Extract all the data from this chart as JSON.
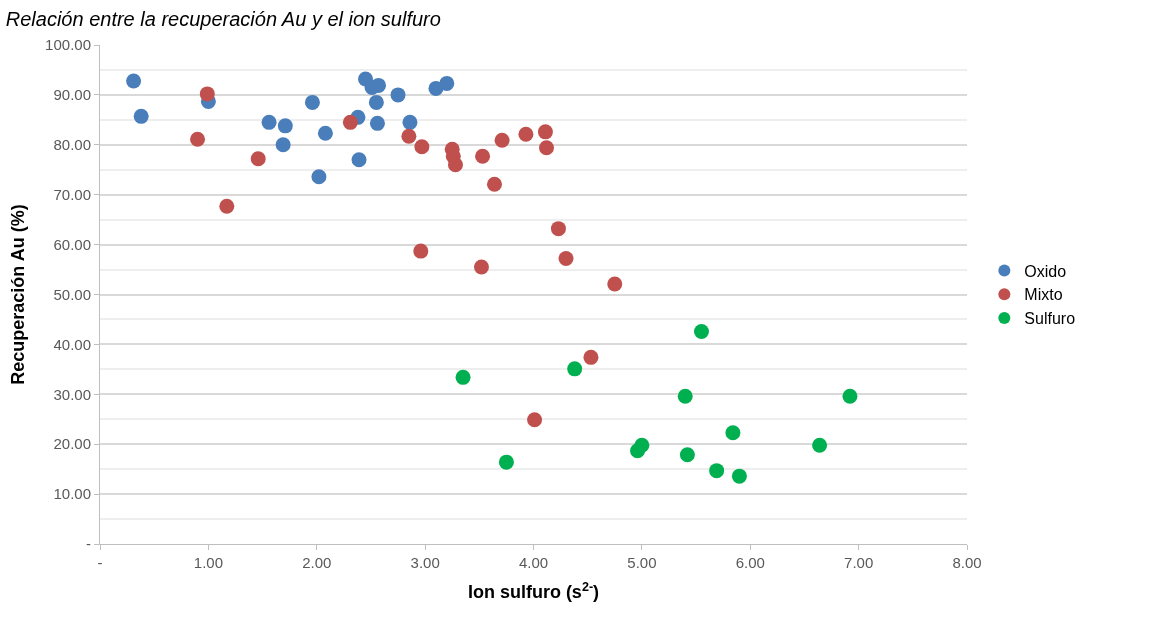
{
  "chart_data": {
    "type": "scatter",
    "title": "Relación entre la recuperación Au y el ion sulfuro",
    "xlabel": "Ion sulfuro (s$^{2-}$)",
    "ylabel": "Recuperación Au (%)",
    "xlim": [
      0,
      8
    ],
    "xticks": [
      {
        "value": 0,
        "label": "-"
      },
      {
        "value": 1,
        "label": "1.00"
      },
      {
        "value": 2,
        "label": "2.00"
      },
      {
        "value": 3,
        "label": "3.00"
      },
      {
        "value": 4,
        "label": "4.00"
      },
      {
        "value": 5,
        "label": "5.00"
      },
      {
        "value": 6,
        "label": "6.00"
      },
      {
        "value": 7,
        "label": "7.00"
      },
      {
        "value": 8,
        "label": "8.00"
      }
    ],
    "ylim": [
      0,
      100
    ],
    "yticks": [
      {
        "value": 0,
        "label": "-"
      },
      {
        "value": 10,
        "label": "10.00"
      },
      {
        "value": 20,
        "label": "20.00"
      },
      {
        "value": 30,
        "label": "30.00"
      },
      {
        "value": 40,
        "label": "40.00"
      },
      {
        "value": 50,
        "label": "50.00"
      },
      {
        "value": 60,
        "label": "60.00"
      },
      {
        "value": 70,
        "label": "70.00"
      },
      {
        "value": 80,
        "label": "80.00"
      },
      {
        "value": 90,
        "label": "90.00"
      },
      {
        "value": 100,
        "label": "100.00"
      }
    ],
    "grid": "y",
    "legend": "right",
    "marker": "circle",
    "series": [
      {
        "name": "Oxido",
        "color": "#4a7ebb",
        "x": [
          0.31,
          0.38,
          1.0,
          1.56,
          1.71,
          1.69,
          1.96,
          2.08,
          2.02,
          2.38,
          2.39,
          2.45,
          2.51,
          2.57,
          2.55,
          2.56,
          2.75,
          2.86,
          3.1,
          3.2
        ],
        "values": [
          92.8,
          85.7,
          88.7,
          84.5,
          83.8,
          80.0,
          88.5,
          82.3,
          73.6,
          85.5,
          77.0,
          93.2,
          91.5,
          91.9,
          88.5,
          84.3,
          90.0,
          84.5,
          91.3,
          92.3
        ]
      },
      {
        "name": "Mixto",
        "color": "#c0504d",
        "x": [
          0.99,
          0.9,
          1.17,
          1.46,
          2.31,
          2.85,
          2.97,
          3.25,
          3.26,
          3.28,
          3.53,
          3.71,
          3.64,
          3.93,
          4.11,
          4.12,
          2.96,
          3.52,
          4.23,
          4.3,
          4.75,
          4.53,
          4.01
        ],
        "values": [
          90.2,
          81.1,
          67.7,
          77.2,
          84.5,
          81.7,
          79.6,
          79.1,
          77.7,
          76.0,
          77.7,
          80.9,
          72.1,
          82.1,
          82.6,
          79.4,
          58.7,
          55.5,
          63.2,
          57.2,
          52.1,
          37.4,
          24.9
        ]
      },
      {
        "name": "Sulfuro",
        "color": "#00b050",
        "x": [
          3.35,
          3.75,
          4.38,
          4.96,
          5.0,
          5.4,
          5.55,
          5.42,
          5.69,
          5.84,
          5.9,
          6.64,
          6.92
        ],
        "values": [
          33.4,
          16.4,
          35.1,
          18.7,
          19.8,
          29.6,
          42.6,
          17.9,
          14.7,
          22.3,
          13.6,
          19.8,
          29.6
        ]
      }
    ]
  }
}
